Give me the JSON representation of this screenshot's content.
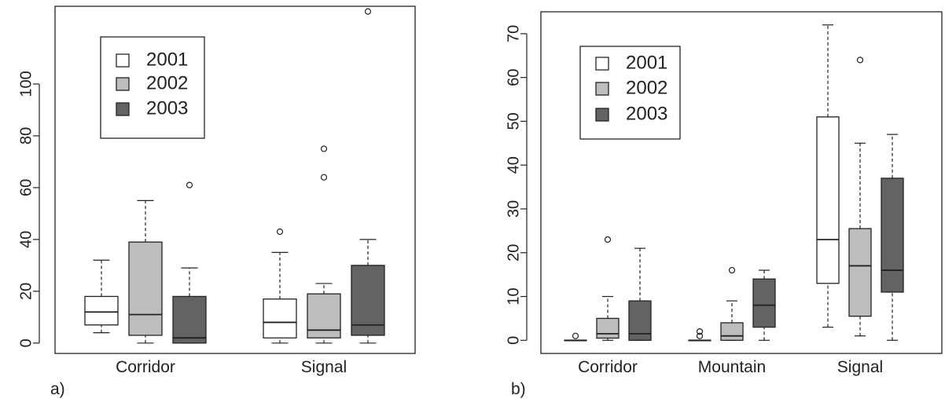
{
  "chart_data": [
    {
      "type": "boxplot",
      "panel_label": "a)",
      "categories": [
        "Corridor",
        "Signal"
      ],
      "yticks": [
        0,
        20,
        40,
        60,
        80,
        100
      ],
      "ylim": [
        -4,
        130
      ],
      "legend_position": "top-left",
      "series": [
        {
          "name": "2001",
          "color": "#ffffff",
          "stats": [
            {
              "min": 4,
              "q1": 7,
              "median": 12,
              "q3": 18,
              "max": 32,
              "outliers": []
            },
            {
              "min": 0,
              "q1": 2,
              "median": 8,
              "q3": 17,
              "max": 35,
              "outliers": [
                43
              ]
            }
          ]
        },
        {
          "name": "2002",
          "color": "#bdbdbd",
          "stats": [
            {
              "min": 0,
              "q1": 3,
              "median": 11,
              "q3": 39,
              "max": 55,
              "outliers": []
            },
            {
              "min": 0,
              "q1": 2,
              "median": 5,
              "q3": 19,
              "max": 23,
              "outliers": [
                64,
                75
              ]
            }
          ]
        },
        {
          "name": "2003",
          "color": "#636363",
          "stats": [
            {
              "min": 0,
              "q1": 0,
              "median": 2,
              "q3": 18,
              "max": 29,
              "outliers": [
                61
              ]
            },
            {
              "min": 0,
              "q1": 3,
              "median": 7,
              "q3": 30,
              "max": 40,
              "outliers": [
                128
              ]
            }
          ]
        }
      ]
    },
    {
      "type": "boxplot",
      "panel_label": "b)",
      "categories": [
        "Corridor",
        "Mountain",
        "Signal"
      ],
      "yticks": [
        0,
        10,
        20,
        30,
        40,
        50,
        60,
        70
      ],
      "ylim": [
        -3,
        75
      ],
      "legend_position": "top-left",
      "series": [
        {
          "name": "2001",
          "color": "#ffffff",
          "stats": [
            {
              "min": 0,
              "q1": 0,
              "median": 0,
              "q3": 0,
              "max": 0,
              "outliers": [
                1
              ]
            },
            {
              "min": 0,
              "q1": 0,
              "median": 0,
              "q3": 0,
              "max": 0,
              "outliers": [
                1,
                2
              ]
            },
            {
              "min": 3,
              "q1": 13,
              "median": 23,
              "q3": 51,
              "max": 72,
              "outliers": []
            }
          ]
        },
        {
          "name": "2002",
          "color": "#bdbdbd",
          "stats": [
            {
              "min": 0,
              "q1": 0.5,
              "median": 1.5,
              "q3": 5,
              "max": 10,
              "outliers": [
                23
              ]
            },
            {
              "min": 0,
              "q1": 0,
              "median": 1,
              "q3": 4,
              "max": 9,
              "outliers": [
                16
              ]
            },
            {
              "min": 1,
              "q1": 5.5,
              "median": 17,
              "q3": 25.5,
              "max": 45,
              "outliers": [
                64
              ]
            }
          ]
        },
        {
          "name": "2003",
          "color": "#636363",
          "stats": [
            {
              "min": 0,
              "q1": 0,
              "median": 1.5,
              "q3": 9,
              "max": 21,
              "outliers": []
            },
            {
              "min": 0,
              "q1": 3,
              "median": 8,
              "q3": 14,
              "max": 16,
              "outliers": []
            },
            {
              "min": 0,
              "q1": 11,
              "median": 16,
              "q3": 37,
              "max": 47,
              "outliers": []
            }
          ]
        }
      ]
    }
  ]
}
